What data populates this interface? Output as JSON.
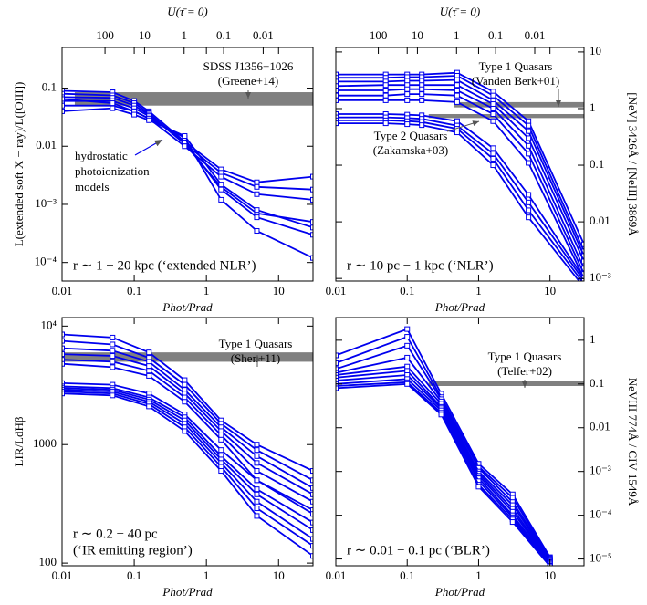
{
  "chart_data": [
    {
      "type": "line",
      "log_x": true,
      "log_y": true,
      "color": "#0000ee",
      "yaxis_side": "left",
      "xlabel": "Phot/Prad",
      "ylabel": "L(extended soft X − ray)/L([OIII])",
      "x2label": "U(τ̄ = 0)",
      "x2lim": [
        1220,
        0.00055
      ],
      "x2ticks": [
        100,
        10,
        1,
        0.1,
        0.01
      ],
      "xlim": [
        0.01,
        30
      ],
      "xticks": [
        0.01,
        0.1,
        1,
        10
      ],
      "ylim": [
        4.8e-05,
        0.5
      ],
      "yticks": [
        {
          "value": 0.0001,
          "label": "10⁻⁴"
        },
        {
          "value": 0.001,
          "label": "10⁻³"
        },
        0.01,
        0.1
      ],
      "x": [
        0.01,
        0.05,
        0.1,
        0.16,
        0.5,
        1.6,
        5,
        30
      ],
      "series": [
        {
          "values": [
            0.09,
            0.085,
            0.06,
            0.04,
            0.012,
            0.004,
            0.0024,
            0.003
          ]
        },
        {
          "values": [
            0.08,
            0.075,
            0.055,
            0.037,
            0.011,
            0.0035,
            0.002,
            0.0018
          ]
        },
        {
          "values": [
            0.07,
            0.068,
            0.05,
            0.035,
            0.011,
            0.002,
            0.0007,
            0.0005
          ]
        },
        {
          "values": [
            0.06,
            0.06,
            0.045,
            0.033,
            0.012,
            0.0018,
            0.0006,
            0.0003
          ]
        },
        {
          "values": [
            0.05,
            0.05,
            0.04,
            0.03,
            0.014,
            0.0012,
            0.00035,
            0.00012
          ]
        },
        {
          "values": [
            0.065,
            0.055,
            0.04,
            0.03,
            0.01,
            0.003,
            0.0015,
            0.0012
          ]
        },
        {
          "values": [
            0.04,
            0.045,
            0.035,
            0.028,
            0.015,
            0.0022,
            0.0008,
            0.0004
          ]
        }
      ],
      "bands": [
        {
          "label": [
            "SDSS J1356+1026",
            "(Greene+14)"
          ],
          "x": [
            0.015,
            30
          ],
          "y": [
            0.05,
            0.085
          ],
          "color": "#808080"
        }
      ],
      "note": [
        "hydrostatic",
        "photoionization",
        "models"
      ],
      "region_label": [
        "r ∼ 1 − 20 kpc  (‘extended NLR’)"
      ]
    },
    {
      "type": "line",
      "log_x": true,
      "log_y": true,
      "color": "#0000ee",
      "yaxis_side": "right",
      "xlabel": "Phot/Prad",
      "ylabel": "[NeV] 3426Å / [NeIII] 3869Å",
      "x2label": "U(τ̄ = 0)",
      "x2lim": [
        1220,
        0.00055
      ],
      "x2ticks": [
        100,
        10,
        1,
        0.1,
        0.01
      ],
      "xlim": [
        0.01,
        30
      ],
      "xticks": [
        0.01,
        0.1,
        1,
        10
      ],
      "ylim": [
        0.0009,
        12
      ],
      "yticks": [
        {
          "value": 0.001,
          "label": "10⁻³"
        },
        0.01,
        0.1,
        1,
        10
      ],
      "x": [
        0.01,
        0.05,
        0.1,
        0.16,
        0.5,
        1.6,
        5,
        30
      ],
      "series": [
        {
          "values": [
            4,
            4,
            4,
            4,
            4.3,
            2,
            0.6,
            0.004
          ]
        },
        {
          "values": [
            3.5,
            3.5,
            3.6,
            3.6,
            3.8,
            1.7,
            0.5,
            0.003
          ]
        },
        {
          "values": [
            3,
            3,
            3.1,
            3.1,
            3.2,
            1.4,
            0.4,
            0.0025
          ]
        },
        {
          "values": [
            2.5,
            2.6,
            2.6,
            2.6,
            2.6,
            1.2,
            0.3,
            0.002
          ]
        },
        {
          "values": [
            2.1,
            2.1,
            2.2,
            2.2,
            2.1,
            1,
            0.22,
            0.0015
          ]
        },
        {
          "values": [
            1.7,
            1.7,
            1.8,
            1.8,
            1.7,
            0.8,
            0.16,
            0.0012
          ]
        },
        {
          "values": [
            1.4,
            1.4,
            1.4,
            1.4,
            1.3,
            0.6,
            0.11,
            0.001
          ]
        },
        {
          "values": [
            0.8,
            0.8,
            0.78,
            0.76,
            0.6,
            0.2,
            0.03,
            0.001
          ]
        },
        {
          "values": [
            0.7,
            0.7,
            0.68,
            0.66,
            0.5,
            0.16,
            0.022,
            0.0009
          ]
        },
        {
          "values": [
            0.62,
            0.62,
            0.6,
            0.58,
            0.44,
            0.13,
            0.016,
            0.0008
          ]
        },
        {
          "values": [
            0.55,
            0.55,
            0.53,
            0.51,
            0.38,
            0.1,
            0.012,
            0.0007
          ]
        }
      ],
      "bands": [
        {
          "label": [
            "Type 1 Quasars",
            "(Vanden Berk+01)"
          ],
          "x": [
            0.45,
            30
          ],
          "y": [
            1.05,
            1.3
          ],
          "color": "#808080"
        },
        {
          "label": [
            "Type 2 Quasars",
            "(Zakamska+03)"
          ],
          "x": [
            0.2,
            30
          ],
          "y": [
            0.68,
            0.8
          ],
          "color": "#808080"
        }
      ],
      "region_label": [
        "r ∼ 10 pc − 1 kpc  (‘NLR’)"
      ]
    },
    {
      "type": "line",
      "log_x": true,
      "log_y": true,
      "color": "#0000ee",
      "yaxis_side": "left",
      "xlabel": "Phot/Prad",
      "ylabel": "LIR/LdHβ",
      "xlim": [
        0.01,
        30
      ],
      "xticks": [
        0.01,
        0.1,
        1,
        10
      ],
      "ylim": [
        95,
        11800
      ],
      "yticks": [
        100,
        1000,
        {
          "value": 10000,
          "label": "10⁴"
        }
      ],
      "x": [
        0.01,
        0.05,
        0.16,
        0.5,
        1.6,
        5,
        30
      ],
      "series": [
        {
          "values": [
            8500,
            8000,
            6000,
            3500,
            1600,
            1000,
            600
          ]
        },
        {
          "values": [
            7500,
            7000,
            5400,
            3200,
            1500,
            900,
            500
          ]
        },
        {
          "values": [
            6500,
            6200,
            5000,
            2900,
            1400,
            800,
            430
          ]
        },
        {
          "values": [
            5800,
            5600,
            4600,
            2700,
            1300,
            700,
            380
          ]
        },
        {
          "values": [
            5200,
            5000,
            4200,
            2500,
            1200,
            600,
            330
          ]
        },
        {
          "values": [
            4800,
            4500,
            3800,
            2300,
            1100,
            500,
            280
          ]
        },
        {
          "values": [
            3300,
            3200,
            2700,
            1800,
            900,
            500,
            260
          ]
        },
        {
          "values": [
            3100,
            3000,
            2500,
            1700,
            800,
            420,
            220
          ]
        },
        {
          "values": [
            3000,
            2900,
            2400,
            1600,
            750,
            380,
            190
          ]
        },
        {
          "values": [
            2900,
            2800,
            2300,
            1500,
            700,
            330,
            160
          ]
        },
        {
          "values": [
            2800,
            2700,
            2200,
            1400,
            650,
            290,
            140
          ]
        },
        {
          "values": [
            2700,
            2600,
            2100,
            1300,
            600,
            250,
            115
          ]
        }
      ],
      "bands": [
        {
          "label": [
            "Type 1 Quasars",
            "(Shen+11)"
          ],
          "x": [
            0.01,
            30
          ],
          "y": [
            5000,
            6000
          ],
          "color": "#808080"
        }
      ],
      "region_label": [
        "r ∼ 0.2 − 40 pc",
        "(‘IR emitting region’)"
      ]
    },
    {
      "type": "line",
      "log_x": true,
      "log_y": true,
      "color": "#0000ee",
      "yaxis_side": "right",
      "xlabel": "Phot/Prad",
      "ylabel": "NeVIII 774Å / CIV 1549Å",
      "xlim": [
        0.01,
        30
      ],
      "xticks": [
        0.01,
        0.1,
        1,
        10
      ],
      "ylim": [
        7e-06,
        3.3
      ],
      "yticks": [
        {
          "value": 1e-05,
          "label": "10⁻⁵"
        },
        {
          "value": 0.0001,
          "label": "10⁻⁴"
        },
        {
          "value": 0.001,
          "label": "10⁻³"
        },
        0.01,
        0.1,
        1
      ],
      "x": [
        0.01,
        0.1,
        0.3,
        1,
        3,
        10
      ],
      "series": [
        {
          "values": [
            0.45,
            1.8,
            0.06,
            0.0015,
            0.0003,
            1.1e-05
          ]
        },
        {
          "values": [
            0.3,
            1.2,
            0.05,
            0.0013,
            0.00025,
            1.05e-05
          ]
        },
        {
          "values": [
            0.22,
            0.75,
            0.045,
            0.0012,
            0.0002,
            1e-05
          ]
        },
        {
          "values": [
            0.18,
            0.4,
            0.04,
            0.001,
            0.00017,
            9.5e-06
          ]
        },
        {
          "values": [
            0.16,
            0.25,
            0.035,
            0.0009,
            0.00014,
            9e-06
          ]
        },
        {
          "values": [
            0.14,
            0.2,
            0.03,
            0.0008,
            0.00012,
            8.5e-06
          ]
        },
        {
          "values": [
            0.12,
            0.16,
            0.028,
            0.0007,
            0.0001,
            8e-06
          ]
        },
        {
          "values": [
            0.1,
            0.13,
            0.025,
            0.0006,
            9e-05,
            7.5e-06
          ]
        },
        {
          "values": [
            0.09,
            0.11,
            0.022,
            0.0005,
            8e-05,
            7e-06
          ]
        },
        {
          "values": [
            0.08,
            0.1,
            0.02,
            0.00045,
            7e-05,
            6.8e-06
          ]
        }
      ],
      "bands": [
        {
          "label": [
            "Type 1 Quasars",
            "(Telfer+02)"
          ],
          "x": [
            0.2,
            30
          ],
          "y": [
            0.09,
            0.12
          ],
          "color": "#808080"
        }
      ],
      "region_label": [
        "r ∼ 0.01 − 0.1 pc  (‘BLR’)"
      ]
    }
  ]
}
